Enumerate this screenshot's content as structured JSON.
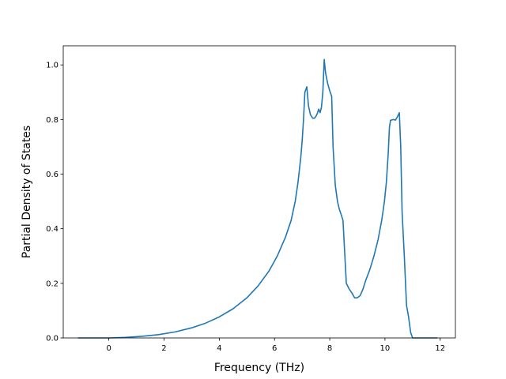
{
  "chart_data": {
    "type": "line",
    "title": "",
    "xlabel": "Frequency (THz)",
    "ylabel": "Partial Density of States",
    "xlim": [
      -1.65,
      12.55
    ],
    "ylim": [
      0.0,
      1.07
    ],
    "xticks": [
      0,
      2,
      4,
      6,
      8,
      10,
      12
    ],
    "yticks": [
      0.0,
      0.2,
      0.4,
      0.6,
      0.8,
      1.0
    ],
    "xtick_labels": [
      "0",
      "2",
      "4",
      "6",
      "8",
      "10",
      "12"
    ],
    "ytick_labels": [
      "0.0",
      "0.2",
      "0.4",
      "0.6",
      "0.8",
      "1.0"
    ],
    "grid": false,
    "legend": "none",
    "series": [
      {
        "color": "#1f77b4",
        "points": [
          [
            -1.12,
            0.0
          ],
          [
            0.0,
            0.0
          ],
          [
            0.6,
            0.002
          ],
          [
            1.2,
            0.006
          ],
          [
            1.8,
            0.012
          ],
          [
            2.4,
            0.022
          ],
          [
            3.0,
            0.037
          ],
          [
            3.5,
            0.054
          ],
          [
            4.0,
            0.077
          ],
          [
            4.5,
            0.107
          ],
          [
            5.0,
            0.147
          ],
          [
            5.4,
            0.19
          ],
          [
            5.8,
            0.245
          ],
          [
            6.1,
            0.3
          ],
          [
            6.4,
            0.37
          ],
          [
            6.6,
            0.43
          ],
          [
            6.75,
            0.5
          ],
          [
            6.85,
            0.57
          ],
          [
            6.95,
            0.66
          ],
          [
            7.0,
            0.72
          ],
          [
            7.05,
            0.8
          ],
          [
            7.1,
            0.9
          ],
          [
            7.17,
            0.92
          ],
          [
            7.23,
            0.85
          ],
          [
            7.3,
            0.818
          ],
          [
            7.38,
            0.805
          ],
          [
            7.45,
            0.805
          ],
          [
            7.5,
            0.812
          ],
          [
            7.55,
            0.822
          ],
          [
            7.6,
            0.838
          ],
          [
            7.65,
            0.825
          ],
          [
            7.7,
            0.845
          ],
          [
            7.75,
            0.9
          ],
          [
            7.8,
            1.02
          ],
          [
            7.85,
            0.97
          ],
          [
            7.93,
            0.93
          ],
          [
            8.0,
            0.905
          ],
          [
            8.07,
            0.885
          ],
          [
            8.12,
            0.7
          ],
          [
            8.2,
            0.56
          ],
          [
            8.28,
            0.5
          ],
          [
            8.35,
            0.47
          ],
          [
            8.42,
            0.45
          ],
          [
            8.48,
            0.43
          ],
          [
            8.6,
            0.2
          ],
          [
            8.7,
            0.18
          ],
          [
            8.8,
            0.165
          ],
          [
            8.9,
            0.147
          ],
          [
            9.0,
            0.147
          ],
          [
            9.1,
            0.155
          ],
          [
            9.2,
            0.178
          ],
          [
            9.3,
            0.21
          ],
          [
            9.45,
            0.25
          ],
          [
            9.6,
            0.3
          ],
          [
            9.75,
            0.36
          ],
          [
            9.88,
            0.43
          ],
          [
            9.98,
            0.5
          ],
          [
            10.05,
            0.57
          ],
          [
            10.12,
            0.68
          ],
          [
            10.16,
            0.77
          ],
          [
            10.2,
            0.797
          ],
          [
            10.3,
            0.8
          ],
          [
            10.38,
            0.798
          ],
          [
            10.45,
            0.81
          ],
          [
            10.52,
            0.825
          ],
          [
            10.57,
            0.7
          ],
          [
            10.62,
            0.46
          ],
          [
            10.7,
            0.3
          ],
          [
            10.78,
            0.12
          ],
          [
            10.85,
            0.08
          ],
          [
            10.93,
            0.02
          ],
          [
            11.0,
            0.0
          ],
          [
            11.9,
            0.0
          ]
        ]
      }
    ]
  }
}
